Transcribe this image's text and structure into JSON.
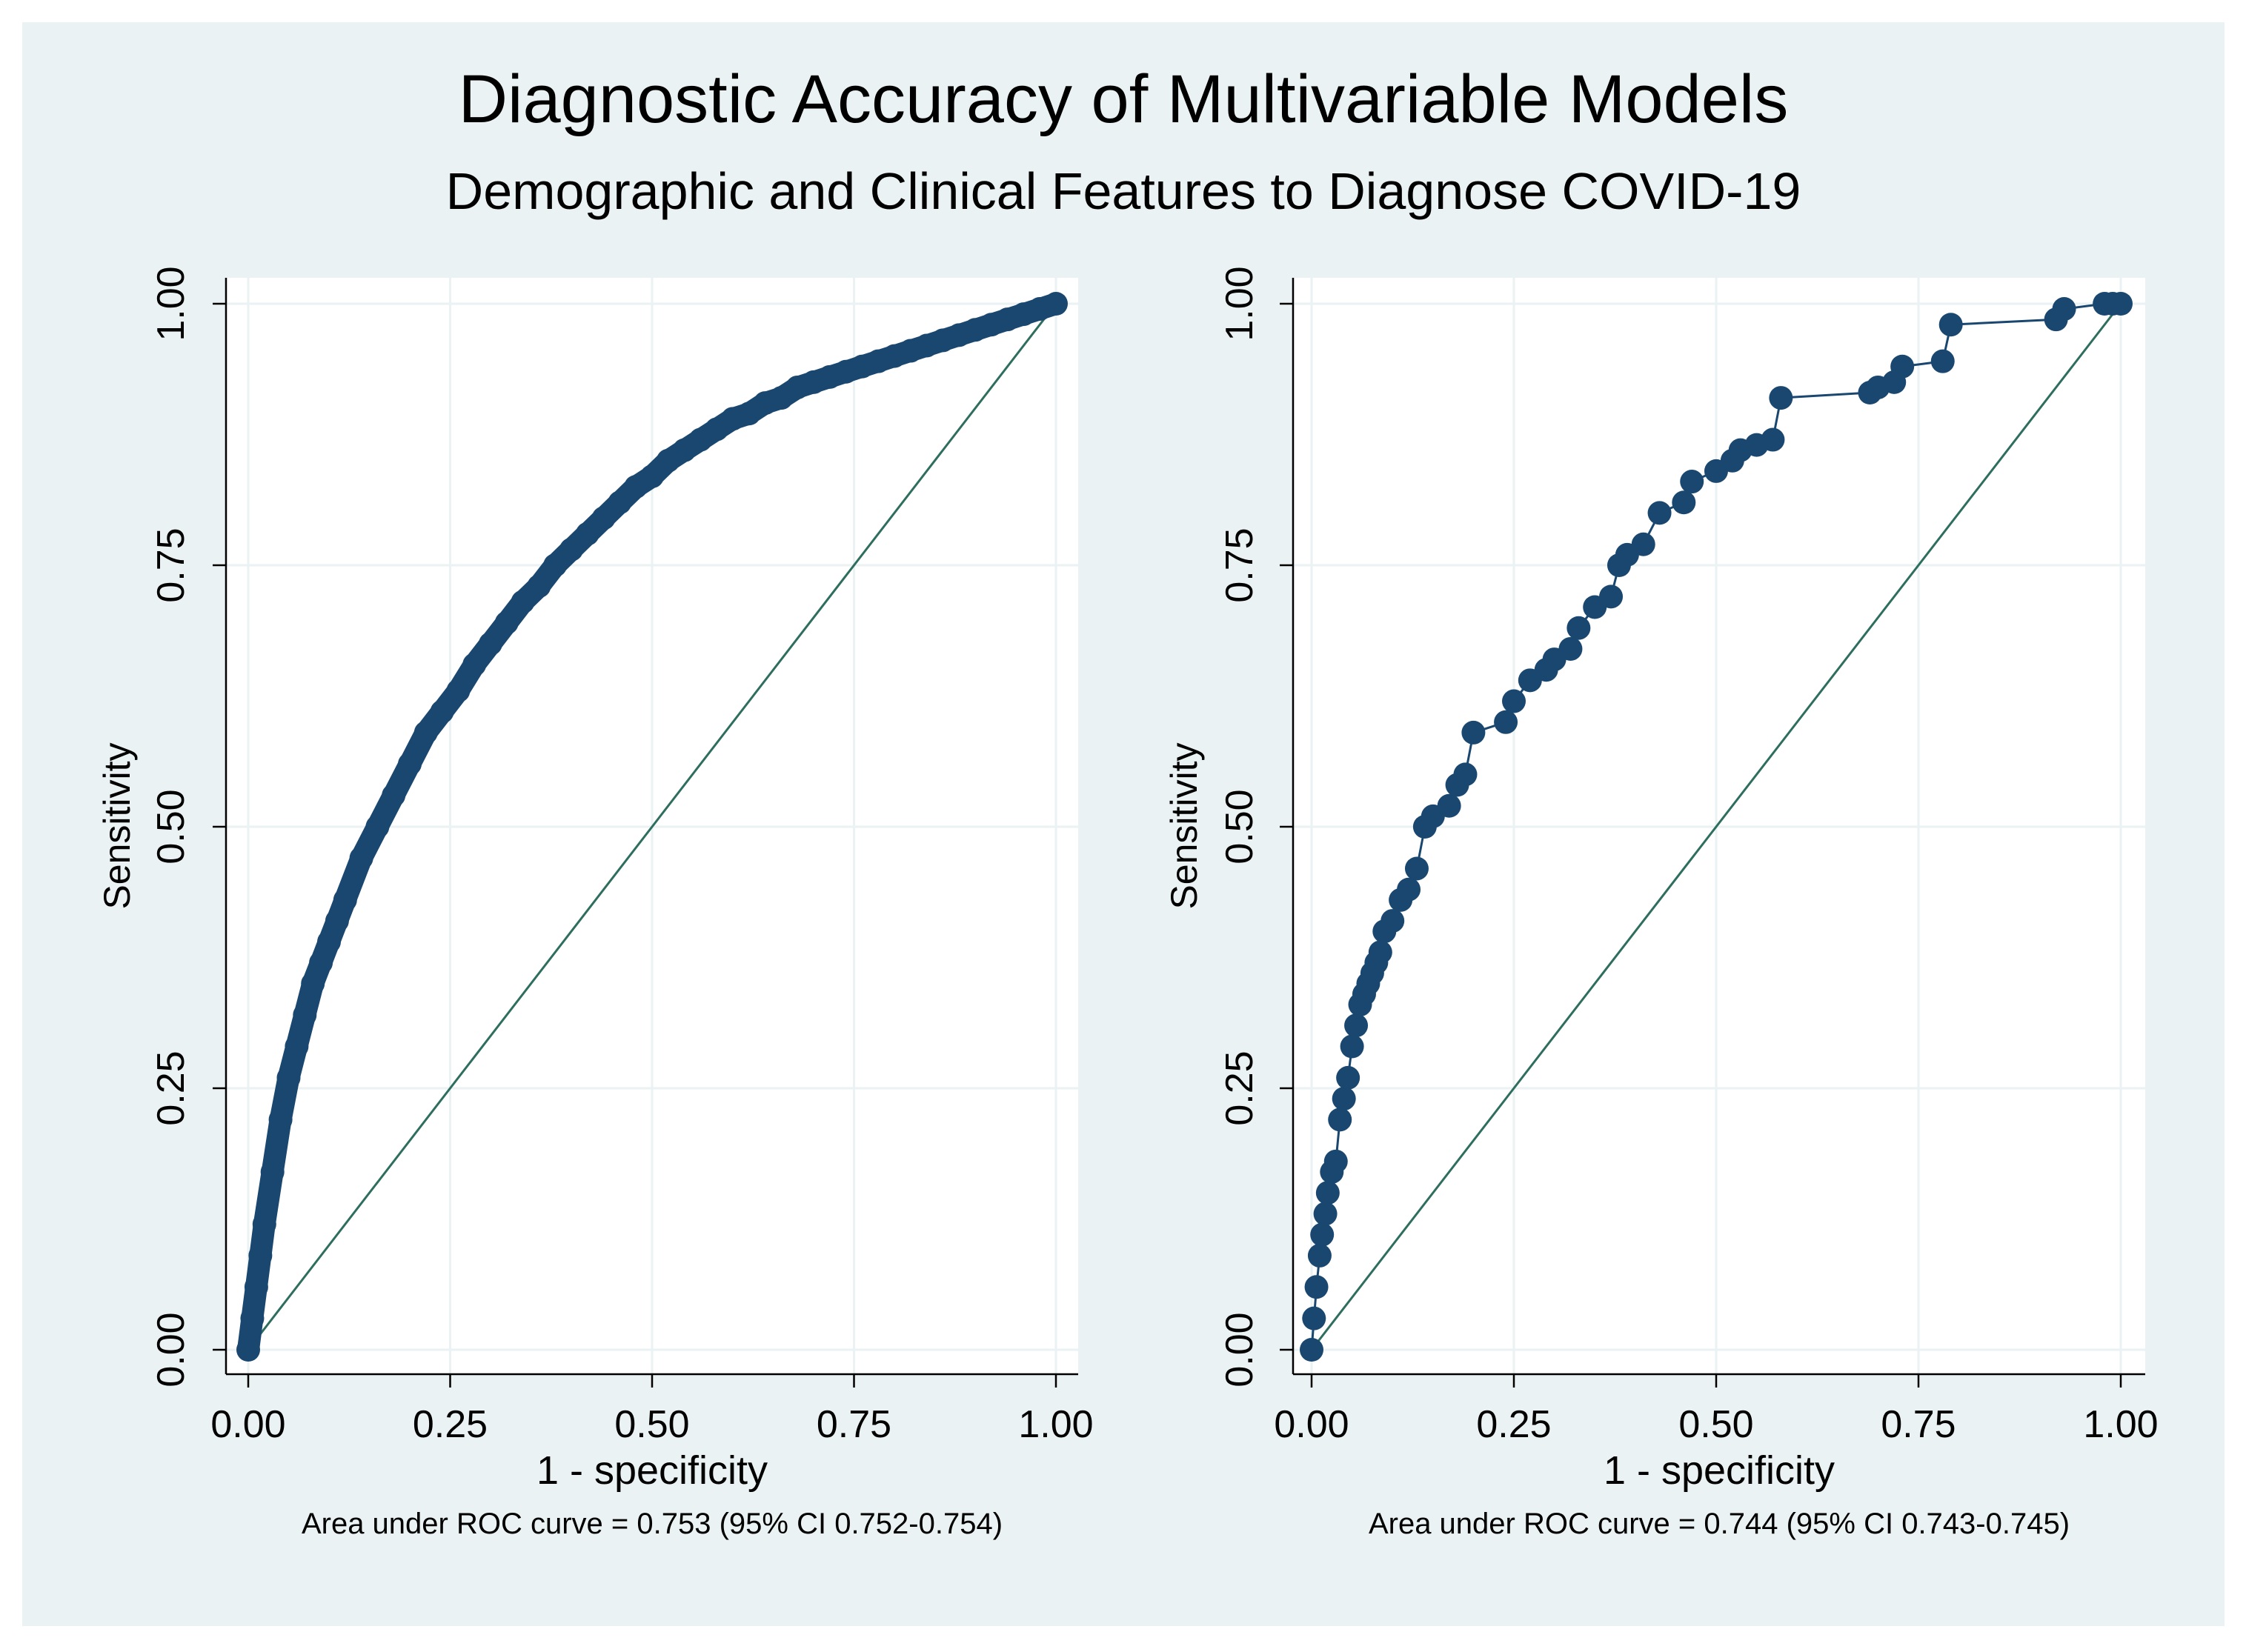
{
  "figure": {
    "title": "Diagnostic Accuracy of Multivariable Models",
    "subtitle": "Demographic and Clinical Features to Diagnose COVID-19",
    "colors": {
      "outer_background": "#eaf2f3",
      "plot_background": "#ffffff",
      "curve": "#1a476f",
      "reference_line": "#2e6e5e",
      "grid": "#eaf2f3",
      "axis": "#000000"
    }
  },
  "chart_data": [
    {
      "type": "line",
      "xlabel": "1 - specificity",
      "ylabel": "Sensitivity",
      "xlim": [
        0,
        1
      ],
      "ylim": [
        0,
        1
      ],
      "xticks": [
        "0.00",
        "0.25",
        "0.50",
        "0.75",
        "1.00"
      ],
      "yticks": [
        "0.00",
        "0.25",
        "0.50",
        "0.75",
        "1.00"
      ],
      "grid": true,
      "note": "Area under ROC curve = 0.753 (95% CI 0.752-0.754)",
      "series": [
        {
          "x": [
            0.0,
            0.005,
            0.01,
            0.015,
            0.02,
            0.03,
            0.04,
            0.05,
            0.06,
            0.07,
            0.08,
            0.09,
            0.1,
            0.11,
            0.12,
            0.14,
            0.16,
            0.18,
            0.2,
            0.22,
            0.24,
            0.26,
            0.28,
            0.3,
            0.32,
            0.34,
            0.36,
            0.38,
            0.4,
            0.42,
            0.44,
            0.46,
            0.48,
            0.5,
            0.52,
            0.54,
            0.56,
            0.58,
            0.6,
            0.62,
            0.64,
            0.66,
            0.68,
            0.7,
            0.72,
            0.74,
            0.76,
            0.78,
            0.8,
            0.82,
            0.84,
            0.86,
            0.88,
            0.9,
            0.92,
            0.94,
            0.96,
            0.98,
            1.0
          ],
          "y": [
            0.0,
            0.03,
            0.06,
            0.09,
            0.12,
            0.17,
            0.22,
            0.26,
            0.29,
            0.32,
            0.35,
            0.37,
            0.39,
            0.41,
            0.43,
            0.47,
            0.5,
            0.53,
            0.56,
            0.59,
            0.61,
            0.63,
            0.655,
            0.675,
            0.695,
            0.715,
            0.73,
            0.75,
            0.765,
            0.78,
            0.795,
            0.81,
            0.825,
            0.835,
            0.85,
            0.86,
            0.87,
            0.88,
            0.89,
            0.895,
            0.905,
            0.91,
            0.92,
            0.925,
            0.93,
            0.935,
            0.94,
            0.945,
            0.95,
            0.955,
            0.96,
            0.965,
            0.97,
            0.975,
            0.98,
            0.985,
            0.99,
            0.995,
            1.0
          ]
        }
      ]
    },
    {
      "type": "line",
      "xlabel": "1 - specificity",
      "ylabel": "Sensitivity",
      "xlim": [
        0,
        1
      ],
      "ylim": [
        0,
        1
      ],
      "xticks": [
        "0.00",
        "0.25",
        "0.50",
        "0.75",
        "1.00"
      ],
      "yticks": [
        "0.00",
        "0.25",
        "0.50",
        "0.75",
        "1.00"
      ],
      "grid": true,
      "note": "Area under ROC curve = 0.744 (95% CI 0.743-0.745)",
      "series": [
        {
          "x": [
            0.0,
            0.003,
            0.006,
            0.01,
            0.013,
            0.017,
            0.02,
            0.025,
            0.03,
            0.035,
            0.04,
            0.045,
            0.05,
            0.055,
            0.06,
            0.065,
            0.07,
            0.075,
            0.08,
            0.085,
            0.09,
            0.1,
            0.11,
            0.12,
            0.13,
            0.14,
            0.15,
            0.17,
            0.18,
            0.19,
            0.2,
            0.24,
            0.25,
            0.27,
            0.29,
            0.3,
            0.32,
            0.33,
            0.35,
            0.37,
            0.38,
            0.39,
            0.41,
            0.43,
            0.46,
            0.47,
            0.5,
            0.52,
            0.53,
            0.55,
            0.57,
            0.58,
            0.69,
            0.7,
            0.72,
            0.73,
            0.78,
            0.79,
            0.92,
            0.93,
            0.98,
            0.99,
            1.0
          ],
          "y": [
            0.0,
            0.03,
            0.06,
            0.09,
            0.11,
            0.13,
            0.15,
            0.17,
            0.18,
            0.22,
            0.24,
            0.26,
            0.29,
            0.31,
            0.33,
            0.34,
            0.35,
            0.36,
            0.37,
            0.38,
            0.4,
            0.41,
            0.43,
            0.44,
            0.46,
            0.5,
            0.51,
            0.52,
            0.54,
            0.55,
            0.59,
            0.6,
            0.62,
            0.64,
            0.65,
            0.66,
            0.67,
            0.69,
            0.71,
            0.72,
            0.75,
            0.76,
            0.77,
            0.8,
            0.81,
            0.83,
            0.84,
            0.85,
            0.86,
            0.865,
            0.87,
            0.91,
            0.915,
            0.92,
            0.925,
            0.94,
            0.945,
            0.98,
            0.985,
            0.995,
            1.0,
            1.0,
            1.0
          ]
        }
      ]
    }
  ]
}
